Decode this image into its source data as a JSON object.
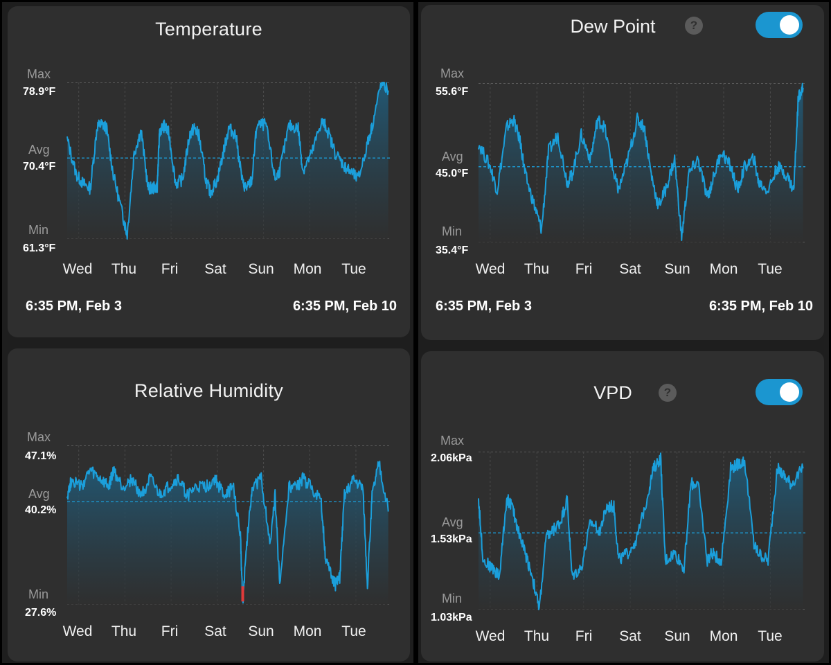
{
  "days": [
    "Wed",
    "Thu",
    "Fri",
    "Sat",
    "Sun",
    "Mon",
    "Tue"
  ],
  "range": {
    "start": "6:35 PM, Feb 3",
    "end": "6:35 PM, Feb 10"
  },
  "labels": {
    "max": "Max",
    "avg": "Avg",
    "min": "Min"
  },
  "help_icon": "question-mark-icon",
  "colors": {
    "line": "#1b9fdb",
    "avg_line": "#1b9fdb",
    "alert": "#e03a3a",
    "card_bg": "#2f2f2f",
    "toggle_on": "#1b96d0"
  },
  "panels": {
    "temperature": {
      "title": "Temperature",
      "max": "78.9°F",
      "avg": "70.4°F",
      "min": "61.3°F"
    },
    "dew_point": {
      "title": "Dew Point",
      "max": "55.6°F",
      "avg": "45.0°F",
      "min": "35.4°F",
      "toggle_on": true
    },
    "humidity": {
      "title": "Relative Humidity",
      "max": "47.1%",
      "avg": "40.2%",
      "min": "27.6%"
    },
    "vpd": {
      "title": "VPD",
      "max": "2.06kPa",
      "avg": "1.53kPa",
      "min": "1.03kPa",
      "toggle_on": true
    }
  },
  "chart_data": [
    {
      "type": "area",
      "title": "Temperature",
      "ylabel": "°F",
      "ylim": [
        61.3,
        78.9
      ],
      "avg": 70.4,
      "x": [
        0,
        0.2,
        0.35,
        0.5,
        0.65,
        0.75,
        0.85,
        1.0,
        1.2,
        1.3,
        1.45,
        1.6,
        1.75,
        1.85,
        1.95,
        2.0,
        2.1,
        2.2,
        2.35,
        2.5,
        2.65,
        2.75,
        2.85,
        3.0,
        3.1,
        3.25,
        3.4,
        3.5,
        3.65,
        3.8,
        3.9,
        4.0,
        4.1,
        4.3,
        4.5,
        4.6,
        4.8,
        5.0,
        5.1,
        5.3,
        5.5,
        5.6,
        5.8,
        6.0,
        6.1,
        6.3,
        6.5,
        6.6,
        6.8,
        6.95
      ],
      "values": [
        72.5,
        68.5,
        67.5,
        67.0,
        74.0,
        74.2,
        73.8,
        68.5,
        64.0,
        61.8,
        71.0,
        73.5,
        67.0,
        67.0,
        67.2,
        73.5,
        74.0,
        73.2,
        67.5,
        68.0,
        73.0,
        73.8,
        73.0,
        68.0,
        66.5,
        68.0,
        71.5,
        73.8,
        73.0,
        67.5,
        67.0,
        68.0,
        74.0,
        74.2,
        68.0,
        69.0,
        74.0,
        73.8,
        69.0,
        71.0,
        74.5,
        74.0,
        71.0,
        69.5,
        69.0,
        68.0,
        72.0,
        74.0,
        78.9,
        78.0
      ],
      "categories": [
        "Wed",
        "Thu",
        "Fri",
        "Sat",
        "Sun",
        "Mon",
        "Tue"
      ]
    },
    {
      "type": "area",
      "title": "Dew Point",
      "ylabel": "°F",
      "ylim": [
        35.4,
        55.6
      ],
      "avg": 45.0,
      "x": [
        0,
        0.25,
        0.4,
        0.6,
        0.75,
        0.9,
        1.0,
        1.2,
        1.35,
        1.5,
        1.7,
        1.9,
        2.0,
        2.2,
        2.4,
        2.55,
        2.7,
        2.9,
        3.0,
        3.2,
        3.4,
        3.55,
        3.7,
        3.85,
        4.0,
        4.2,
        4.35,
        4.5,
        4.7,
        4.9,
        5.0,
        5.2,
        5.4,
        5.55,
        5.7,
        5.9,
        6.0,
        6.2,
        6.4,
        6.6,
        6.75,
        6.85,
        6.95
      ],
      "values": [
        48,
        45,
        42,
        50,
        51,
        48,
        44,
        40,
        37,
        47,
        49,
        43,
        44,
        49,
        46,
        51,
        50,
        44,
        42,
        46,
        51,
        50,
        44,
        40,
        42,
        46,
        36,
        44,
        46,
        41,
        43,
        47,
        45,
        42,
        45,
        46,
        43,
        42,
        45,
        44,
        42,
        54,
        55
      ],
      "categories": [
        "Wed",
        "Thu",
        "Fri",
        "Sat",
        "Sun",
        "Mon",
        "Tue"
      ]
    },
    {
      "type": "area",
      "title": "Relative Humidity",
      "ylabel": "%",
      "ylim": [
        27.6,
        47.1
      ],
      "avg": 40.2,
      "x": [
        0,
        0.1,
        0.3,
        0.5,
        0.7,
        0.9,
        1.0,
        1.2,
        1.4,
        1.6,
        1.8,
        2.0,
        2.2,
        2.4,
        2.6,
        2.8,
        3.0,
        3.2,
        3.4,
        3.6,
        3.75,
        3.8,
        3.9,
        4.0,
        4.2,
        4.4,
        4.5,
        4.6,
        4.8,
        5.0,
        5.1,
        5.3,
        5.5,
        5.6,
        5.8,
        5.9,
        6.0,
        6.2,
        6.4,
        6.5,
        6.6,
        6.75,
        6.95
      ],
      "values": [
        41,
        43,
        42,
        44,
        43,
        42,
        44,
        42,
        43,
        41,
        43,
        41,
        42,
        43,
        41,
        42,
        42,
        43,
        41,
        42,
        36,
        28,
        36,
        42,
        43,
        35,
        41,
        30,
        42,
        42,
        43,
        42,
        40,
        33,
        30,
        31,
        41,
        43,
        42,
        30,
        41,
        45,
        39
      ],
      "alert_below": 28.0,
      "categories": [
        "Wed",
        "Thu",
        "Fri",
        "Sat",
        "Sun",
        "Mon",
        "Tue"
      ]
    },
    {
      "type": "area",
      "title": "VPD",
      "ylabel": "kPa",
      "ylim": [
        1.03,
        2.06
      ],
      "avg": 1.53,
      "x": [
        0,
        0.1,
        0.3,
        0.45,
        0.6,
        0.7,
        0.85,
        1.0,
        1.15,
        1.3,
        1.45,
        1.6,
        1.75,
        1.9,
        2.0,
        2.2,
        2.4,
        2.6,
        2.75,
        2.9,
        3.0,
        3.2,
        3.4,
        3.6,
        3.75,
        3.9,
        4.0,
        4.2,
        4.4,
        4.55,
        4.7,
        4.9,
        5.0,
        5.2,
        5.4,
        5.55,
        5.7,
        5.9,
        6.0,
        6.2,
        6.4,
        6.55,
        6.7,
        6.95
      ],
      "values": [
        1.75,
        1.35,
        1.3,
        1.25,
        1.75,
        1.72,
        1.55,
        1.4,
        1.25,
        1.03,
        1.5,
        1.55,
        1.6,
        1.75,
        1.25,
        1.3,
        1.6,
        1.55,
        1.7,
        1.7,
        1.35,
        1.4,
        1.5,
        1.75,
        1.95,
        2.02,
        1.35,
        1.4,
        1.3,
        1.85,
        1.85,
        1.35,
        1.4,
        1.35,
        1.95,
        1.98,
        2.0,
        1.45,
        1.4,
        1.35,
        1.95,
        1.9,
        1.85,
        1.95
      ],
      "categories": [
        "Wed",
        "Thu",
        "Fri",
        "Sat",
        "Sun",
        "Mon",
        "Tue"
      ]
    }
  ]
}
